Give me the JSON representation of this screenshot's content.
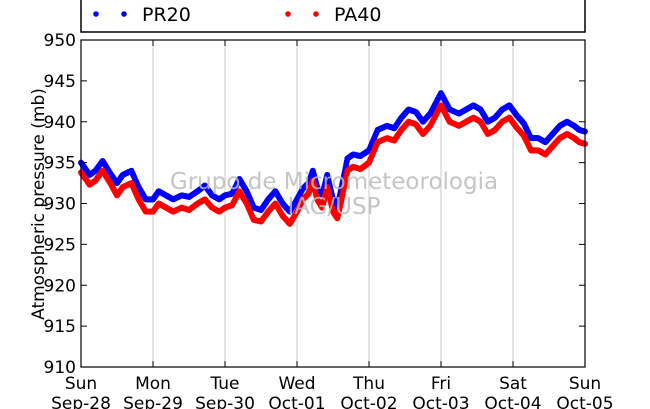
{
  "chart_data": {
    "type": "scatter",
    "ylabel": "Atmospheric pressure (mb)",
    "ylim": [
      910,
      950
    ],
    "yticks": [
      910,
      915,
      920,
      925,
      930,
      935,
      940,
      945,
      950
    ],
    "x_ticks": [
      {
        "day": "Sun",
        "date": "Sep-28"
      },
      {
        "day": "Mon",
        "date": "Sep-29"
      },
      {
        "day": "Tue",
        "date": "Sep-30"
      },
      {
        "day": "Wed",
        "date": "Oct-01"
      },
      {
        "day": "Thu",
        "date": "Oct-02"
      },
      {
        "day": "Fri",
        "date": "Oct-03"
      },
      {
        "day": "Sat",
        "date": "Oct-04"
      },
      {
        "day": "Sun",
        "date": "Oct-05"
      }
    ],
    "xlim": [
      0,
      7
    ],
    "grid": "vertical",
    "legend": {
      "placement": "top"
    },
    "watermark": [
      "Grupo de Micrometeorologia",
      "IAG/USP"
    ],
    "series": [
      {
        "name": "PR20",
        "color": "#0000ff",
        "x": [
          0,
          0.12,
          0.2,
          0.3,
          0.42,
          0.5,
          0.58,
          0.7,
          0.8,
          0.9,
          1,
          1.08,
          1.18,
          1.28,
          1.4,
          1.5,
          1.62,
          1.72,
          1.82,
          1.92,
          2,
          2.1,
          2.2,
          2.3,
          2.4,
          2.5,
          2.6,
          2.7,
          2.8,
          2.9,
          3,
          3.08,
          3.16,
          3.22,
          3.28,
          3.35,
          3.42,
          3.5,
          3.56,
          3.62,
          3.7,
          3.78,
          3.88,
          4,
          4.12,
          4.25,
          4.35,
          4.45,
          4.55,
          4.65,
          4.75,
          4.85,
          5,
          5.12,
          5.25,
          5.35,
          5.45,
          5.55,
          5.65,
          5.75,
          5.85,
          5.95,
          6.05,
          6.15,
          6.25,
          6.35,
          6.45,
          6.55,
          6.65,
          6.75,
          6.85,
          6.92,
          7
        ],
        "y": [
          935,
          933.5,
          934,
          935.2,
          933.5,
          932.5,
          933.5,
          934,
          932,
          930.5,
          930.5,
          931.5,
          931,
          930.5,
          931,
          930.8,
          931.5,
          932.2,
          931,
          930.5,
          931,
          931.2,
          933,
          931.5,
          929.5,
          929.2,
          930.5,
          931.5,
          930,
          929,
          930.5,
          931.8,
          932.5,
          934,
          932,
          931,
          933.5,
          930.5,
          929.5,
          932,
          935.5,
          936,
          935.8,
          936.5,
          939,
          939.5,
          939.2,
          940.5,
          941.5,
          941.2,
          940,
          941,
          943.5,
          941.5,
          941,
          941.5,
          942,
          941.5,
          940,
          940.5,
          941.5,
          942,
          940.8,
          939.8,
          938,
          938,
          937.5,
          938.5,
          939.5,
          940,
          939.5,
          939,
          938.8
        ]
      },
      {
        "name": "PA40",
        "color": "#ff0000",
        "x": [
          0,
          0.12,
          0.2,
          0.3,
          0.42,
          0.5,
          0.58,
          0.7,
          0.8,
          0.9,
          1,
          1.08,
          1.18,
          1.28,
          1.4,
          1.5,
          1.62,
          1.72,
          1.82,
          1.92,
          2,
          2.1,
          2.2,
          2.3,
          2.4,
          2.5,
          2.6,
          2.7,
          2.8,
          2.9,
          3,
          3.08,
          3.16,
          3.22,
          3.28,
          3.35,
          3.42,
          3.5,
          3.56,
          3.62,
          3.7,
          3.78,
          3.88,
          4,
          4.12,
          4.25,
          4.35,
          4.45,
          4.55,
          4.65,
          4.75,
          4.85,
          5,
          5.12,
          5.25,
          5.35,
          5.45,
          5.55,
          5.65,
          5.75,
          5.85,
          5.95,
          6.05,
          6.15,
          6.25,
          6.35,
          6.45,
          6.55,
          6.65,
          6.75,
          6.85,
          6.92,
          7
        ],
        "y": [
          933.8,
          932.3,
          932.8,
          934,
          932.3,
          931,
          932,
          932.5,
          930.5,
          929,
          929,
          930,
          929.5,
          929,
          929.5,
          929.2,
          930,
          930.5,
          929.5,
          929,
          929.5,
          929.8,
          931.5,
          930,
          928,
          927.8,
          929,
          930,
          928.5,
          927.5,
          929,
          930.5,
          931.2,
          932.8,
          930.5,
          929.5,
          932,
          929,
          928.2,
          930.5,
          934,
          934.5,
          934.2,
          935,
          937.5,
          938,
          937.7,
          939,
          940,
          939.7,
          938.5,
          939.5,
          942,
          940,
          939.5,
          940,
          940.5,
          940,
          938.5,
          939,
          940,
          940.5,
          939.3,
          938.3,
          936.5,
          936.5,
          936,
          937,
          938,
          938.5,
          938,
          937.5,
          937.3
        ]
      }
    ]
  }
}
